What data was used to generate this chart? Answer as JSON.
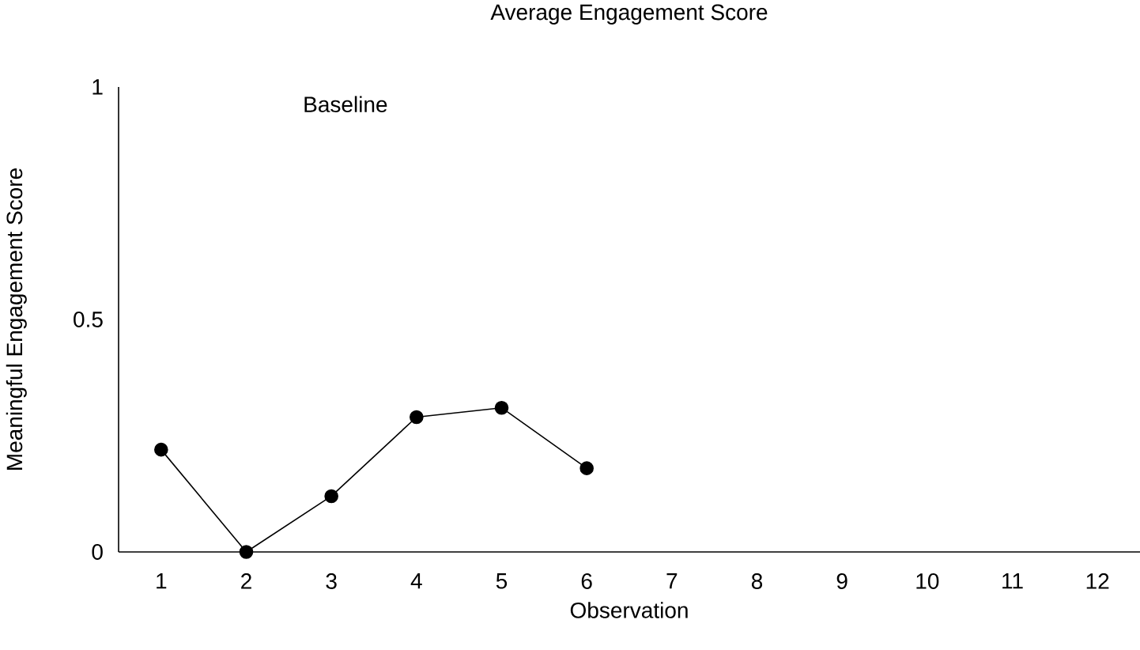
{
  "chart_data": {
    "type": "line",
    "title": "Average Engagement Score",
    "xlabel": "Observation",
    "ylabel": "Meaningful Engagement Score",
    "categories": [
      "1",
      "2",
      "3",
      "4",
      "5",
      "6",
      "7",
      "8",
      "9",
      "10",
      "11",
      "12"
    ],
    "values": [
      0.22,
      0.0,
      0.12,
      0.29,
      0.31,
      0.18,
      null,
      null,
      null,
      null,
      null,
      null
    ],
    "color": "#000000",
    "marker": "circle",
    "line_style": "solid",
    "ylim": [
      0,
      1
    ],
    "yticks": [
      0,
      0.5,
      1
    ],
    "annotations": [
      "Baseline"
    ]
  }
}
